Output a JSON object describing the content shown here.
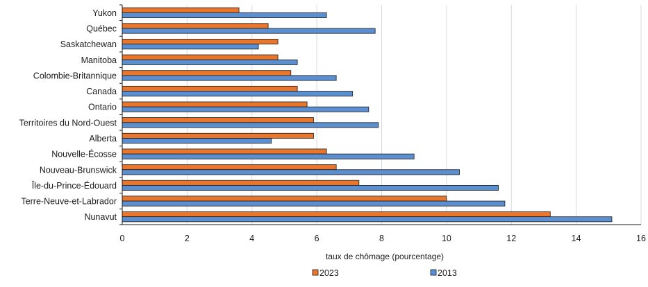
{
  "chart_data": {
    "type": "bar",
    "orientation": "horizontal",
    "categories": [
      "Yukon",
      "Québec",
      "Saskatchewan",
      "Manitoba",
      "Colombie-Britannique",
      "Canada",
      "Ontario",
      "Territoires du Nord-Ouest",
      "Alberta",
      "Nouvelle-Écosse",
      "Nouveau-Brunswick",
      "Île-du-Prince-Édouard",
      "Terre-Neuve-et-Labrador",
      "Nunavut"
    ],
    "series": [
      {
        "name": "2023",
        "color": "#e8762d",
        "values": [
          3.6,
          4.5,
          4.8,
          4.8,
          5.2,
          5.4,
          5.7,
          5.9,
          5.9,
          6.3,
          6.6,
          7.3,
          10.0,
          13.2
        ]
      },
      {
        "name": "2013",
        "color": "#5b8fcf",
        "values": [
          6.3,
          7.8,
          4.2,
          5.4,
          6.6,
          7.1,
          7.6,
          7.9,
          4.6,
          9.0,
          10.4,
          11.6,
          11.8,
          15.1
        ]
      }
    ],
    "xlabel": "taux de chômage (pourcentage)",
    "ylabel": "",
    "xlim": [
      0,
      16
    ],
    "xticks": [
      "0",
      "2",
      "4",
      "6",
      "8",
      "10",
      "12",
      "14",
      "16"
    ],
    "grid": "vertical",
    "legend": {
      "position": "bottom",
      "entries": [
        "2023",
        "2013"
      ]
    }
  }
}
